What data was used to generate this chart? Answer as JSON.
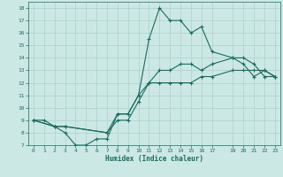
{
  "xlabel": "Humidex (Indice chaleur)",
  "bg_color": "#cce8e5",
  "grid_color": "#b0d4d0",
  "line_color": "#1a6b5e",
  "xlim": [
    -0.5,
    23.5
  ],
  "ylim": [
    7,
    18.5
  ],
  "xticks": [
    0,
    1,
    2,
    3,
    4,
    5,
    6,
    7,
    8,
    9,
    10,
    11,
    12,
    13,
    14,
    15,
    16,
    17,
    19,
    20,
    21,
    22,
    23
  ],
  "yticks": [
    7,
    8,
    9,
    10,
    11,
    12,
    13,
    14,
    15,
    16,
    17,
    18
  ],
  "line1_x": [
    0,
    1,
    2,
    3,
    4,
    5,
    6,
    7,
    8,
    9,
    10,
    11,
    12,
    13,
    14,
    15,
    16,
    17,
    19,
    20,
    21,
    22,
    23
  ],
  "line1_y": [
    9,
    9,
    8.5,
    8,
    7,
    7,
    7.5,
    7.5,
    9.5,
    9.5,
    11,
    15.5,
    18,
    17,
    17,
    16,
    16.5,
    14.5,
    14,
    13.5,
    12.5,
    13,
    12.5
  ],
  "line2_x": [
    0,
    2,
    3,
    7,
    8,
    9,
    10,
    11,
    12,
    13,
    14,
    15,
    16,
    17,
    19,
    20,
    21,
    22,
    23
  ],
  "line2_y": [
    9,
    8.5,
    8.5,
    8,
    9,
    9,
    10.5,
    12,
    12,
    12,
    12,
    12,
    12.5,
    12.5,
    13,
    13,
    13,
    13,
    12.5
  ],
  "line3_x": [
    0,
    2,
    3,
    7,
    8,
    9,
    10,
    11,
    12,
    13,
    14,
    15,
    16,
    17,
    19,
    20,
    21,
    22,
    23
  ],
  "line3_y": [
    9,
    8.5,
    8.5,
    8,
    9.5,
    9.5,
    11,
    12,
    13,
    13,
    13.5,
    13.5,
    13,
    13.5,
    14,
    14,
    13.5,
    12.5,
    12.5
  ]
}
